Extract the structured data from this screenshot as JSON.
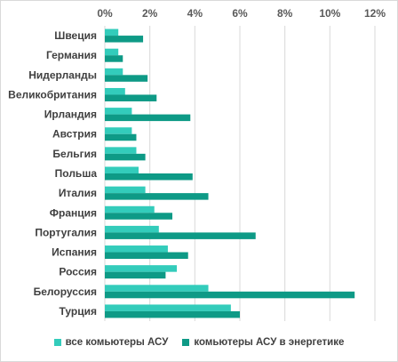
{
  "chart_data": {
    "type": "bar",
    "orientation": "horizontal",
    "categories": [
      "Швеция",
      "Германия",
      "Нидерланды",
      "Великобритания",
      "Ирландия",
      "Австрия",
      "Бельгия",
      "Польша",
      "Италия",
      "Франция",
      "Португалия",
      "Испания",
      "Россия",
      "Белоруссия",
      "Турция"
    ],
    "series": [
      {
        "name": "все комьютеры АСУ",
        "color": "#33ccbb",
        "values": [
          0.6,
          0.6,
          0.8,
          0.9,
          1.2,
          1.2,
          1.4,
          1.5,
          1.8,
          2.2,
          2.4,
          2.8,
          3.2,
          4.6,
          5.6
        ]
      },
      {
        "name": "комьютеры АСУ в энергетике",
        "color": "#0e9a86",
        "values": [
          1.7,
          0.8,
          1.9,
          2.3,
          3.8,
          1.4,
          1.8,
          3.9,
          4.6,
          3.0,
          6.7,
          3.7,
          2.7,
          11.1,
          6.0
        ]
      }
    ],
    "xlim": [
      0,
      12
    ],
    "x_ticks": [
      "0%",
      "2%",
      "4%",
      "6%",
      "8%",
      "10%",
      "12%"
    ],
    "x_axis_position": "top",
    "grid": true,
    "legend_position": "bottom",
    "title": "",
    "xlabel": "",
    "ylabel": ""
  }
}
